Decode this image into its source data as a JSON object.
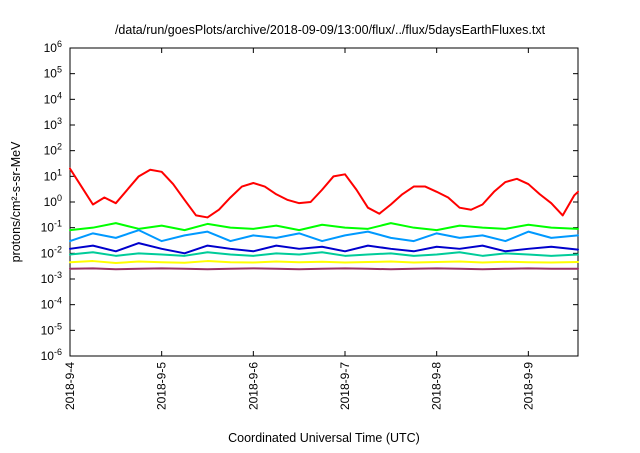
{
  "chart_data": {
    "type": "line",
    "title": "/data/run/goesPlots/archive/2018-09-09/13:00/flux/../flux/5daysEarthFluxes.txt",
    "xlabel": "Coordinated Universal Time (UTC)",
    "ylabel": "protons/cm²-s-sr-MeV",
    "yscale": "log",
    "xlim": [
      "2018-09-04T00:00",
      "2018-09-09T13:00"
    ],
    "ylim": [
      1e-06,
      1000000.0
    ],
    "xticks": [
      "2018-9-4",
      "2018-9-5",
      "2018-9-6",
      "2018-9-7",
      "2018-9-8",
      "2018-9-9"
    ],
    "ytick_exponents": [
      -6,
      -5,
      -4,
      -3,
      -2,
      -1,
      0,
      1,
      2,
      3,
      4,
      5,
      6
    ],
    "grid": false,
    "legend": "none",
    "series": [
      {
        "color": "#ff0000",
        "x": [
          "2018-09-04T00:00",
          "2018-09-04T03:00",
          "2018-09-04T06:00",
          "2018-09-04T09:00",
          "2018-09-04T12:00",
          "2018-09-04T15:00",
          "2018-09-04T18:00",
          "2018-09-04T21:00",
          "2018-09-05T00:00",
          "2018-09-05T03:00",
          "2018-09-05T06:00",
          "2018-09-05T09:00",
          "2018-09-05T12:00",
          "2018-09-05T15:00",
          "2018-09-05T18:00",
          "2018-09-05T21:00",
          "2018-09-06T00:00",
          "2018-09-06T03:00",
          "2018-09-06T06:00",
          "2018-09-06T09:00",
          "2018-09-06T12:00",
          "2018-09-06T15:00",
          "2018-09-06T18:00",
          "2018-09-06T21:00",
          "2018-09-07T00:00",
          "2018-09-07T03:00",
          "2018-09-07T06:00",
          "2018-09-07T09:00",
          "2018-09-07T12:00",
          "2018-09-07T15:00",
          "2018-09-07T18:00",
          "2018-09-07T21:00",
          "2018-09-08T00:00",
          "2018-09-08T03:00",
          "2018-09-08T06:00",
          "2018-09-08T09:00",
          "2018-09-08T12:00",
          "2018-09-08T15:00",
          "2018-09-08T18:00",
          "2018-09-08T21:00",
          "2018-09-09T00:00",
          "2018-09-09T03:00",
          "2018-09-09T06:00",
          "2018-09-09T09:00",
          "2018-09-09T12:00",
          "2018-09-09T13:00"
        ],
        "y": [
          20,
          4,
          0.8,
          1.5,
          0.9,
          3,
          10,
          18,
          15,
          5,
          1.2,
          0.3,
          0.25,
          0.5,
          1.5,
          4,
          5.5,
          4,
          2,
          1.2,
          0.9,
          1,
          3,
          10,
          12,
          3,
          0.6,
          0.35,
          0.8,
          2,
          4,
          4,
          2.5,
          1.5,
          0.6,
          0.5,
          0.8,
          2.5,
          6,
          8,
          5,
          2,
          0.9,
          0.3,
          1.8,
          2.5
        ]
      },
      {
        "color": "#00ff00",
        "x": [
          "2018-09-04T00:00",
          "2018-09-04T06:00",
          "2018-09-04T12:00",
          "2018-09-04T18:00",
          "2018-09-05T00:00",
          "2018-09-05T06:00",
          "2018-09-05T12:00",
          "2018-09-05T18:00",
          "2018-09-06T00:00",
          "2018-09-06T06:00",
          "2018-09-06T12:00",
          "2018-09-06T18:00",
          "2018-09-07T00:00",
          "2018-09-07T06:00",
          "2018-09-07T12:00",
          "2018-09-07T18:00",
          "2018-09-08T00:00",
          "2018-09-08T06:00",
          "2018-09-08T12:00",
          "2018-09-08T18:00",
          "2018-09-09T00:00",
          "2018-09-09T06:00",
          "2018-09-09T13:00"
        ],
        "y": [
          0.08,
          0.1,
          0.15,
          0.09,
          0.12,
          0.08,
          0.14,
          0.1,
          0.09,
          0.12,
          0.08,
          0.13,
          0.1,
          0.09,
          0.15,
          0.1,
          0.08,
          0.12,
          0.1,
          0.09,
          0.13,
          0.1,
          0.09
        ]
      },
      {
        "color": "#0099ff",
        "x": [
          "2018-09-04T00:00",
          "2018-09-04T06:00",
          "2018-09-04T12:00",
          "2018-09-04T18:00",
          "2018-09-05T00:00",
          "2018-09-05T06:00",
          "2018-09-05T12:00",
          "2018-09-05T18:00",
          "2018-09-06T00:00",
          "2018-09-06T06:00",
          "2018-09-06T12:00",
          "2018-09-06T18:00",
          "2018-09-07T00:00",
          "2018-09-07T06:00",
          "2018-09-07T12:00",
          "2018-09-07T18:00",
          "2018-09-08T00:00",
          "2018-09-08T06:00",
          "2018-09-08T12:00",
          "2018-09-08T18:00",
          "2018-09-09T00:00",
          "2018-09-09T06:00",
          "2018-09-09T13:00"
        ],
        "y": [
          0.03,
          0.06,
          0.04,
          0.08,
          0.03,
          0.05,
          0.07,
          0.03,
          0.05,
          0.04,
          0.06,
          0.03,
          0.05,
          0.07,
          0.04,
          0.03,
          0.06,
          0.04,
          0.05,
          0.03,
          0.07,
          0.04,
          0.05
        ]
      },
      {
        "color": "#0000cc",
        "x": [
          "2018-09-04T00:00",
          "2018-09-04T06:00",
          "2018-09-04T12:00",
          "2018-09-04T18:00",
          "2018-09-05T00:00",
          "2018-09-05T06:00",
          "2018-09-05T12:00",
          "2018-09-05T18:00",
          "2018-09-06T00:00",
          "2018-09-06T06:00",
          "2018-09-06T12:00",
          "2018-09-06T18:00",
          "2018-09-07T00:00",
          "2018-09-07T06:00",
          "2018-09-07T12:00",
          "2018-09-07T18:00",
          "2018-09-08T00:00",
          "2018-09-08T06:00",
          "2018-09-08T12:00",
          "2018-09-08T18:00",
          "2018-09-09T00:00",
          "2018-09-09T06:00",
          "2018-09-09T13:00"
        ],
        "y": [
          0.015,
          0.02,
          0.012,
          0.025,
          0.015,
          0.01,
          0.02,
          0.015,
          0.012,
          0.02,
          0.015,
          0.018,
          0.012,
          0.02,
          0.015,
          0.012,
          0.018,
          0.015,
          0.02,
          0.012,
          0.015,
          0.018,
          0.014
        ]
      },
      {
        "color": "#00cc99",
        "x": [
          "2018-09-04T00:00",
          "2018-09-04T06:00",
          "2018-09-04T12:00",
          "2018-09-04T18:00",
          "2018-09-05T00:00",
          "2018-09-05T06:00",
          "2018-09-05T12:00",
          "2018-09-05T18:00",
          "2018-09-06T00:00",
          "2018-09-06T06:00",
          "2018-09-06T12:00",
          "2018-09-06T18:00",
          "2018-09-07T00:00",
          "2018-09-07T06:00",
          "2018-09-07T12:00",
          "2018-09-07T18:00",
          "2018-09-08T00:00",
          "2018-09-08T06:00",
          "2018-09-08T12:00",
          "2018-09-08T18:00",
          "2018-09-09T00:00",
          "2018-09-09T06:00",
          "2018-09-09T13:00"
        ],
        "y": [
          0.009,
          0.011,
          0.008,
          0.01,
          0.009,
          0.008,
          0.011,
          0.009,
          0.008,
          0.01,
          0.009,
          0.011,
          0.008,
          0.009,
          0.01,
          0.008,
          0.009,
          0.011,
          0.008,
          0.01,
          0.009,
          0.008,
          0.009
        ]
      },
      {
        "color": "#ffff00",
        "x": [
          "2018-09-04T00:00",
          "2018-09-04T06:00",
          "2018-09-04T12:00",
          "2018-09-04T18:00",
          "2018-09-05T00:00",
          "2018-09-05T06:00",
          "2018-09-05T12:00",
          "2018-09-05T18:00",
          "2018-09-06T00:00",
          "2018-09-06T06:00",
          "2018-09-06T12:00",
          "2018-09-06T18:00",
          "2018-09-07T00:00",
          "2018-09-07T06:00",
          "2018-09-07T12:00",
          "2018-09-07T18:00",
          "2018-09-08T00:00",
          "2018-09-08T06:00",
          "2018-09-08T12:00",
          "2018-09-08T18:00",
          "2018-09-09T00:00",
          "2018-09-09T06:00",
          "2018-09-09T13:00"
        ],
        "y": [
          0.0045,
          0.005,
          0.0042,
          0.0048,
          0.0045,
          0.0043,
          0.005,
          0.0045,
          0.0044,
          0.0048,
          0.0045,
          0.0047,
          0.0044,
          0.0046,
          0.0048,
          0.0044,
          0.0046,
          0.0048,
          0.0044,
          0.0047,
          0.0045,
          0.0044,
          0.0046
        ]
      },
      {
        "color": "#993366",
        "x": [
          "2018-09-04T00:00",
          "2018-09-04T06:00",
          "2018-09-04T12:00",
          "2018-09-04T18:00",
          "2018-09-05T00:00",
          "2018-09-05T06:00",
          "2018-09-05T12:00",
          "2018-09-05T18:00",
          "2018-09-06T00:00",
          "2018-09-06T06:00",
          "2018-09-06T12:00",
          "2018-09-06T18:00",
          "2018-09-07T00:00",
          "2018-09-07T06:00",
          "2018-09-07T12:00",
          "2018-09-07T18:00",
          "2018-09-08T00:00",
          "2018-09-08T06:00",
          "2018-09-08T12:00",
          "2018-09-08T18:00",
          "2018-09-09T00:00",
          "2018-09-09T06:00",
          "2018-09-09T13:00"
        ],
        "y": [
          0.0025,
          0.0026,
          0.0024,
          0.0025,
          0.0026,
          0.0025,
          0.0024,
          0.0025,
          0.0026,
          0.0025,
          0.0024,
          0.0025,
          0.0026,
          0.0025,
          0.0024,
          0.0025,
          0.0026,
          0.0025,
          0.0024,
          0.0025,
          0.0026,
          0.0025,
          0.0025
        ]
      }
    ]
  }
}
